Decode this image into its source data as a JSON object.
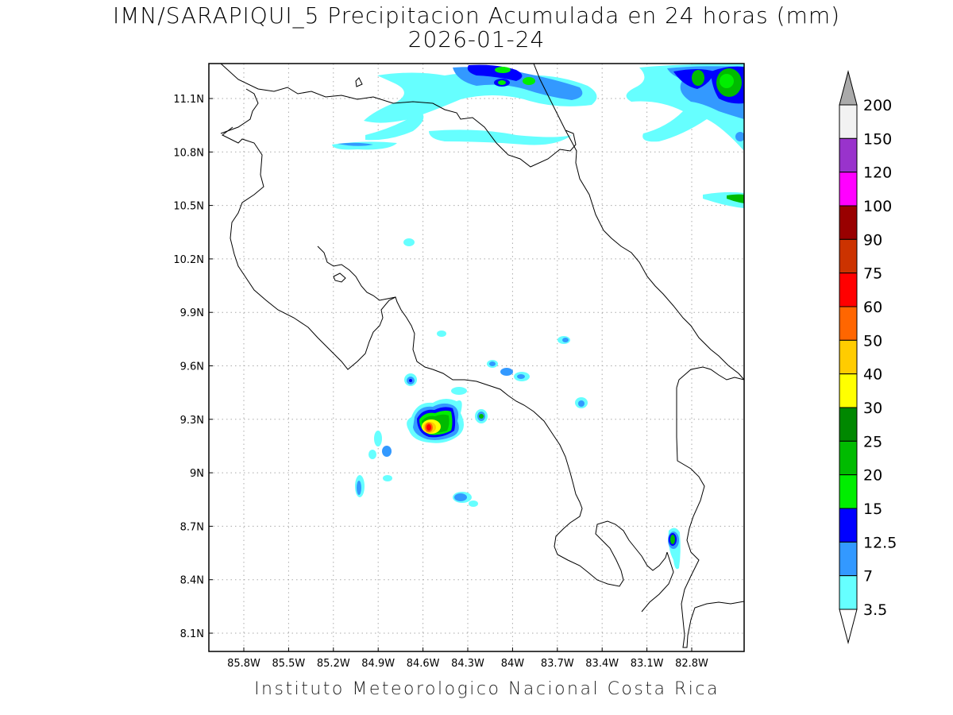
{
  "title": {
    "line1": "IMN/SARAPIQUI_5 Precipitacion Acumulada en 24 horas (mm)",
    "line2": "2026-01-24"
  },
  "axes": {
    "lon_labels": [
      "85.8W",
      "85.5W",
      "85.2W",
      "84.9W",
      "84.6W",
      "84.3W",
      "84W",
      "83.7W",
      "83.4W",
      "83.1W",
      "82.8W"
    ],
    "lat_labels": [
      "11.1N",
      "10.8N",
      "10.5N",
      "10.2N",
      "9.9N",
      "9.6N",
      "9.3N",
      "9N",
      "8.7N",
      "8.4N",
      "8.1N"
    ],
    "grid": true
  },
  "colorbar": {
    "levels": [
      "200",
      "150",
      "120",
      "100",
      "90",
      "75",
      "60",
      "50",
      "40",
      "30",
      "25",
      "20",
      "15",
      "12.5",
      "7",
      "3.5"
    ],
    "colors": [
      "#f2f2f2",
      "#9933cc",
      "#ff00ff",
      "#990000",
      "#cc3300",
      "#ff0000",
      "#ff6600",
      "#ffcc00",
      "#ffff00",
      "#008800",
      "#00bb00",
      "#00ee00",
      "#0000ff",
      "#3399ff",
      "#66ffff"
    ],
    "over_color": "#aaaaaa",
    "under_color": "#ffffff"
  },
  "footer": "Instituto Meteorologico Nacional Costa Rica"
}
